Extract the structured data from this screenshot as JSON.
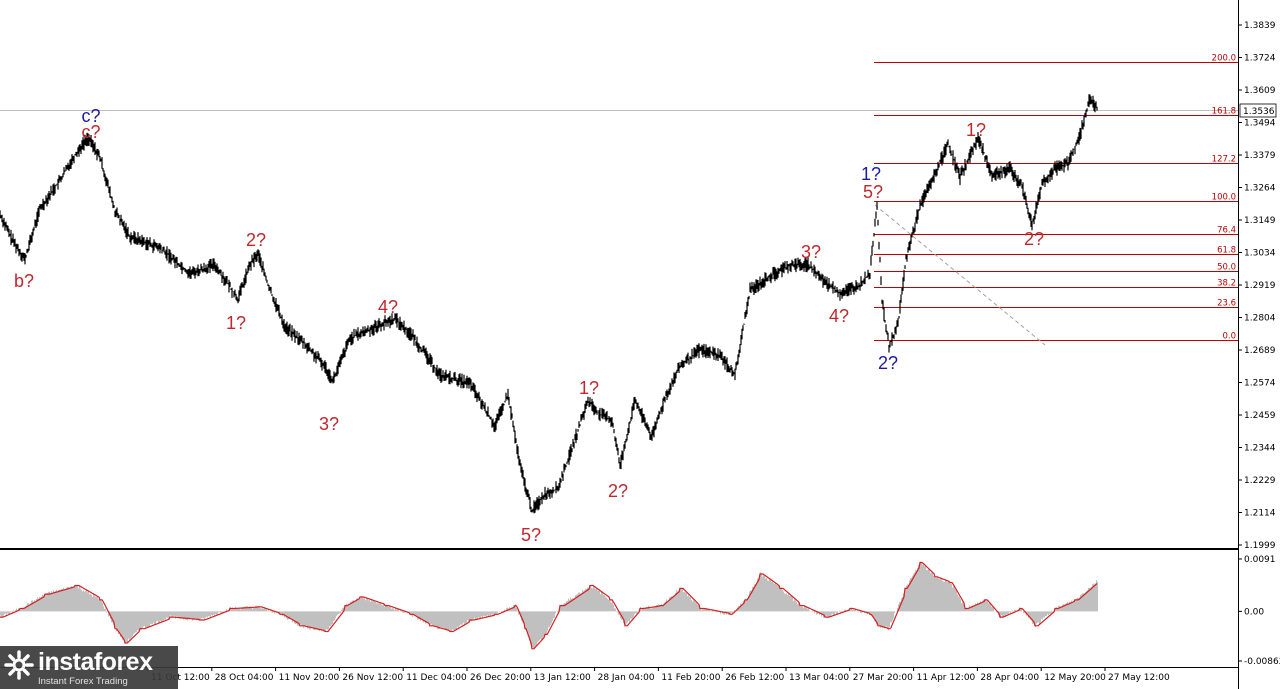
{
  "symbol_current_price": "1.3536",
  "price_axis": {
    "ticks": [
      "1.3839",
      "1.3724",
      "1.3609",
      "1.3494",
      "1.3379",
      "1.3264",
      "1.3149",
      "1.3034",
      "1.2919",
      "1.2804",
      "1.2689",
      "1.2574",
      "1.2459",
      "1.2344",
      "1.2229",
      "1.2114",
      "1.1999"
    ],
    "range": [
      1.1999,
      1.3839
    ]
  },
  "time_axis": {
    "ticks": [
      "11 Oct 12:00",
      "28 Oct 04:00",
      "11 Nov 20:00",
      "26 Nov 12:00",
      "11 Dec 04:00",
      "26 Dec 20:00",
      "13 Jan 12:00",
      "28 Jan 04:00",
      "11 Feb 20:00",
      "26 Feb 12:00",
      "13 Mar 04:00",
      "27 Mar 20:00",
      "11 Apr 12:00",
      "28 Apr 04:00",
      "12 May 20:00",
      "27 May 12:00"
    ]
  },
  "fibonacci": {
    "levels": [
      {
        "label": "200.0",
        "price": 1.3708
      },
      {
        "label": "161.8",
        "price": 1.352
      },
      {
        "label": "127.2",
        "price": 1.335
      },
      {
        "label": "100.0",
        "price": 1.3216
      },
      {
        "label": "76.4",
        "price": 1.31
      },
      {
        "label": "61.8",
        "price": 1.3028
      },
      {
        "label": "50.0",
        "price": 1.297
      },
      {
        "label": "38.2",
        "price": 1.2912
      },
      {
        "label": "23.6",
        "price": 1.284
      },
      {
        "label": "0.0",
        "price": 1.2724
      }
    ],
    "color": "#c00000"
  },
  "wave_labels": [
    {
      "text": "c?",
      "color": "#1a1aa8"
    },
    {
      "text": "c?",
      "color": "#c0282d"
    },
    {
      "text": "b?",
      "color": "#c0282d"
    },
    {
      "text": "2?",
      "color": "#c0282d"
    },
    {
      "text": "1?",
      "color": "#c0282d"
    },
    {
      "text": "4?",
      "color": "#c0282d"
    },
    {
      "text": "3?",
      "color": "#c0282d"
    },
    {
      "text": "5?",
      "color": "#c0282d"
    },
    {
      "text": "1?",
      "color": "#c0282d"
    },
    {
      "text": "2?",
      "color": "#c0282d"
    },
    {
      "text": "3?",
      "color": "#c0282d"
    },
    {
      "text": "4?",
      "color": "#c0282d"
    },
    {
      "text": "1?",
      "color": "#1a1aa8"
    },
    {
      "text": "5?",
      "color": "#c0282d"
    },
    {
      "text": "2?",
      "color": "#1a1aa8"
    },
    {
      "text": "1?",
      "color": "#c0282d"
    },
    {
      "text": "2?",
      "color": "#c0282d"
    }
  ],
  "oscillator": {
    "ticks": [
      "0.0091",
      "0.00",
      "-0.00862"
    ],
    "range": [
      -0.00862,
      0.0091
    ],
    "histogram_color": "#c0c0c0",
    "signal_color": "#d42020"
  },
  "logo": {
    "brand": "instaforex",
    "tagline": "Instant Forex Trading"
  }
}
